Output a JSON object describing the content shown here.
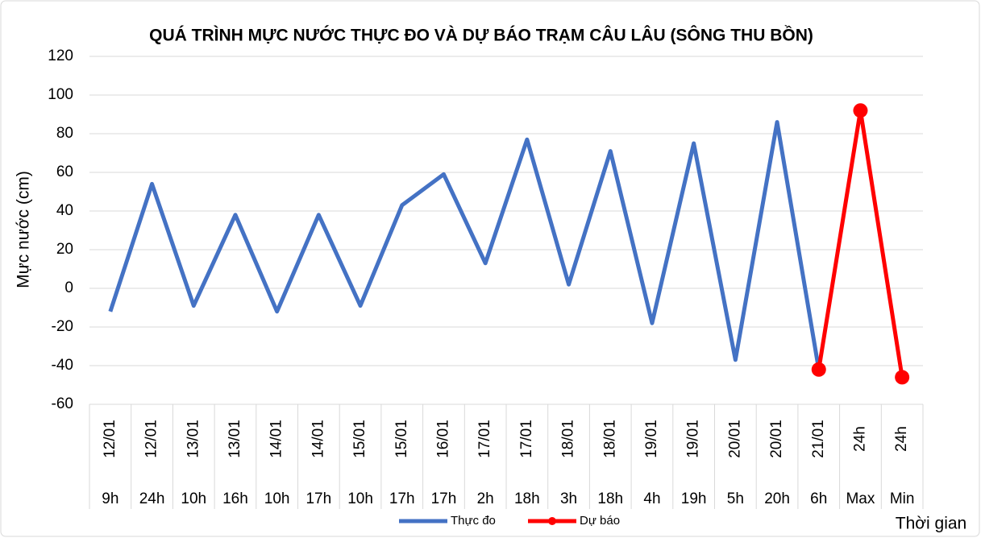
{
  "chart_data": {
    "type": "line",
    "title": "QUÁ TRÌNH MỰC NƯỚC THỰC ĐO VÀ DỰ BÁO TRẠM CÂU LÂU (SÔNG THU BỒN)",
    "y_label": "Mực nước (cm)",
    "x_label": "Thời gian",
    "categories_top": [
      "12/01",
      "12/01",
      "13/01",
      "13/01",
      "14/01",
      "14/01",
      "15/01",
      "15/01",
      "16/01",
      "17/01",
      "17/01",
      "18/01",
      "18/01",
      "19/01",
      "19/01",
      "20/01",
      "20/01",
      "21/01",
      "24h",
      "24h"
    ],
    "categories": [
      "9h",
      "24h",
      "10h",
      "16h",
      "10h",
      "17h",
      "10h",
      "17h",
      "17h",
      "2h",
      "18h",
      "3h",
      "18h",
      "4h",
      "19h",
      "5h",
      "20h",
      "6h",
      "Max",
      "Min"
    ],
    "series": [
      {
        "name": "Thực đo",
        "color": "#4472c4",
        "values": [
          -12,
          54,
          -9,
          38,
          -12,
          38,
          -9,
          43,
          59,
          13,
          77,
          2,
          71,
          -18,
          75,
          -37,
          86,
          -42,
          null,
          null
        ]
      },
      {
        "name": "Dự báo",
        "color": "#ff0000",
        "marker": true,
        "values": [
          null,
          null,
          null,
          null,
          null,
          null,
          null,
          null,
          null,
          null,
          null,
          null,
          null,
          null,
          null,
          null,
          null,
          -42,
          92,
          -46
        ]
      }
    ],
    "ylim": [
      -60,
      120
    ],
    "yticks": [
      -60,
      -40,
      -20,
      0,
      20,
      40,
      60,
      80,
      100,
      120
    ],
    "grid": true
  }
}
